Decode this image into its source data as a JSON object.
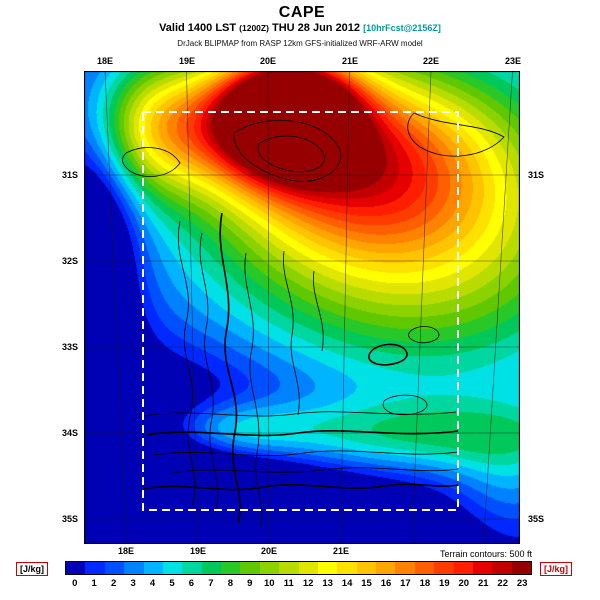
{
  "header": {
    "title": "CAPE",
    "valid": {
      "prefix": "Valid 1400 LST",
      "zulu": "(1200Z)",
      "date": "THU 28 Jun 2012",
      "fcst": "[10hrFcst@2156Z]"
    },
    "model_line": "DrJack BLIPMAP from RASP 12km GFS-initialized WRF-ARW model"
  },
  "map": {
    "axis": {
      "top": [
        "18E",
        "19E",
        "20E",
        "21E",
        "22E",
        "23E"
      ],
      "bottom": [
        "18E",
        "19E",
        "20E",
        "21E"
      ],
      "left": [
        "31S",
        "32S",
        "33S",
        "34S",
        "35S"
      ],
      "right": [
        "31S",
        "35S"
      ]
    }
  },
  "colorbar": {
    "units_left": "[J/kg]",
    "units_right": "[J/kg]",
    "note": "Terrain contours: 500 ft",
    "ticks": [
      "0",
      "1",
      "2",
      "3",
      "4",
      "5",
      "6",
      "7",
      "8",
      "9",
      "10",
      "11",
      "12",
      "13",
      "14",
      "15",
      "16",
      "17",
      "18",
      "19",
      "20",
      "21",
      "22",
      "23"
    ],
    "colors": [
      "#0000b4",
      "#0028ff",
      "#0050ff",
      "#0082ff",
      "#00b4ff",
      "#00e1e6",
      "#00d7a0",
      "#00c85a",
      "#28c828",
      "#5fc800",
      "#8cd200",
      "#b9dc00",
      "#e1e600",
      "#ffff00",
      "#ffe100",
      "#ffc300",
      "#ffa500",
      "#ff8200",
      "#ff5f00",
      "#ff3c00",
      "#ff1e00",
      "#e60000",
      "#c30000",
      "#960000"
    ]
  },
  "chart_data": {
    "type": "heatmap",
    "variable": "CAPE (Convective Available Potential Energy)",
    "units": "J/kg",
    "valid_time": "1400 LST (1200Z) THU 28 Jun 2012",
    "forecast": "10hrFcst@2156Z",
    "model": "DrJack BLIPMAP from RASP 12km GFS-initialized WRF-ARW model",
    "lon_labels": [
      "18E",
      "19E",
      "20E",
      "21E",
      "22E",
      "23E"
    ],
    "lat_labels": [
      "31S",
      "32S",
      "33S",
      "34S",
      "35S"
    ],
    "scale_range": [
      0,
      23
    ],
    "legend_position": "bottom",
    "terrain_contour_interval": "500 ft",
    "pattern": "maximum CAPE (red/orange, ~18-23) over north-central interior; broad green/yellow (~7-14) over north and east; near-zero CAPE (dark blue) over southwest, coastal ocean and south; cyan/green coastal band (~4-7) along the south coast; white dashed inner model-domain box"
  }
}
